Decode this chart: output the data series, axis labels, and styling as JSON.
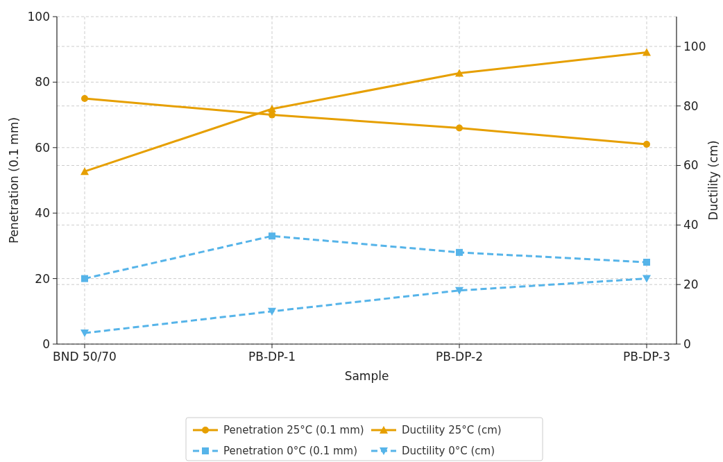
{
  "chart_data": {
    "type": "line",
    "xlabel": "Sample",
    "ylabel": "Penetration (0.1 mm)",
    "y2label": "Ductility (cm)",
    "categories": [
      "BND 50/70",
      "PB-DP-1",
      "PB-DP-2",
      "PB-DP-3"
    ],
    "series": [
      {
        "name": "Penetration 25°C (0.1 mm)",
        "color": "#e69f00",
        "values": [
          75,
          70,
          66,
          61
        ],
        "marker": "circle",
        "line_style": "solid"
      },
      {
        "name": "Penetration 0°C (0.1 mm)",
        "color": "#56b4e9",
        "values": [
          20,
          33,
          28,
          25
        ],
        "marker": "square",
        "line_style": "dashed"
      },
      {
        "name": "Ductility 25°C (cm)",
        "color": "#e69f00",
        "values": [
          58,
          79,
          91,
          98
        ],
        "marker": "triangle",
        "line_style": "solid",
        "axis": "y2"
      },
      {
        "name": "Ductility 0°C (cm)",
        "color": "#56b4e9",
        "values": [
          3.7,
          11,
          18,
          22
        ],
        "marker": "triangle-down",
        "line_style": "dashed",
        "axis": "y2"
      }
    ],
    "ylim": [
      0,
      100
    ],
    "yticks": [
      0,
      20,
      40,
      60,
      80,
      100
    ],
    "y2lim": [
      0,
      110
    ],
    "y2ticks": [
      0,
      20,
      40,
      60,
      80,
      100
    ],
    "grid": true,
    "legend": "bottom"
  }
}
